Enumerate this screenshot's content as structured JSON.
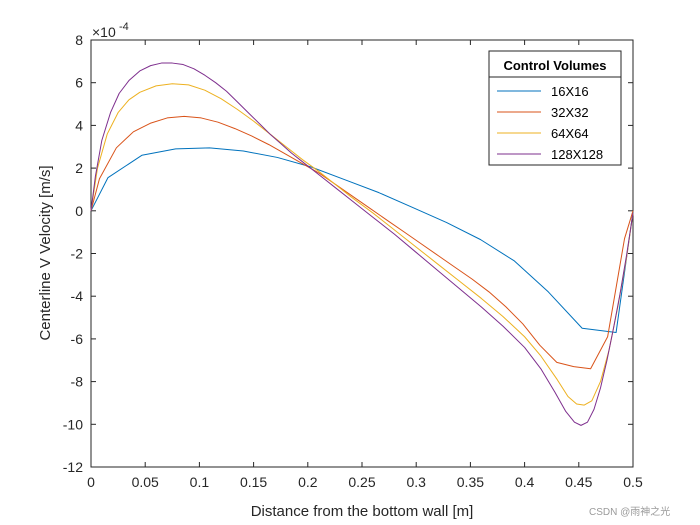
{
  "chart_data": {
    "type": "line",
    "title": "",
    "xlabel": "Distance from the bottom wall [m]",
    "ylabel": "Centerline V Velocity [m/s]",
    "xlim": [
      0,
      0.5
    ],
    "ylim": [
      -12,
      8
    ],
    "y_exponent_label": "×10",
    "y_exponent_power": "-4",
    "xticks": [
      0,
      0.05,
      0.1,
      0.15,
      0.2,
      0.25,
      0.3,
      0.35,
      0.4,
      0.45,
      0.5
    ],
    "xtick_labels": [
      "0",
      "0.05",
      "0.1",
      "0.15",
      "0.2",
      "0.25",
      "0.3",
      "0.35",
      "0.4",
      "0.45",
      "0.5"
    ],
    "yticks": [
      -12,
      -10,
      -8,
      -6,
      -4,
      -2,
      0,
      2,
      4,
      6,
      8
    ],
    "ytick_labels": [
      "-12",
      "-10",
      "-8",
      "-6",
      "-4",
      "-2",
      "0",
      "2",
      "4",
      "6",
      "8"
    ],
    "legend_title": "Control Volumes",
    "legend_position": "top-right",
    "series": [
      {
        "name": "16X16",
        "color": "#0072BD",
        "x": [
          0,
          0.0156,
          0.0469,
          0.0781,
          0.1094,
          0.1406,
          0.1719,
          0.2031,
          0.2344,
          0.2656,
          0.2969,
          0.3281,
          0.3594,
          0.3906,
          0.4219,
          0.4531,
          0.4844,
          0.5
        ],
        "y": [
          0,
          1.55,
          2.6,
          2.9,
          2.95,
          2.8,
          2.5,
          2.05,
          1.45,
          0.85,
          0.15,
          -0.55,
          -1.35,
          -2.35,
          -3.8,
          -5.5,
          -5.7,
          -0.05
        ]
      },
      {
        "name": "32X32",
        "color": "#D95319",
        "x": [
          0,
          0.0078,
          0.0234,
          0.0391,
          0.0547,
          0.0703,
          0.0859,
          0.1016,
          0.1172,
          0.1328,
          0.1484,
          0.1641,
          0.1797,
          0.1953,
          0.2109,
          0.2266,
          0.2422,
          0.2578,
          0.2734,
          0.2891,
          0.3047,
          0.3203,
          0.3359,
          0.3516,
          0.3672,
          0.3828,
          0.3984,
          0.4141,
          0.4297,
          0.4453,
          0.4609,
          0.4766,
          0.4922,
          0.5
        ],
        "y": [
          0,
          1.5,
          2.95,
          3.7,
          4.1,
          4.35,
          4.42,
          4.35,
          4.15,
          3.85,
          3.5,
          3.1,
          2.65,
          2.2,
          1.75,
          1.2,
          0.65,
          0.1,
          -0.45,
          -1.0,
          -1.55,
          -2.1,
          -2.65,
          -3.2,
          -3.8,
          -4.5,
          -5.3,
          -6.3,
          -7.1,
          -7.3,
          -7.4,
          -5.9,
          -1.3,
          0
        ]
      },
      {
        "name": "64X64",
        "color": "#EDB120",
        "x": [
          0,
          0.006,
          0.015,
          0.025,
          0.035,
          0.045,
          0.06,
          0.075,
          0.09,
          0.105,
          0.12,
          0.135,
          0.15,
          0.165,
          0.18,
          0.195,
          0.21,
          0.225,
          0.24,
          0.26,
          0.28,
          0.3,
          0.32,
          0.34,
          0.36,
          0.38,
          0.4,
          0.415,
          0.43,
          0.44,
          0.448,
          0.455,
          0.462,
          0.47,
          0.478,
          0.486,
          0.494,
          0.5
        ],
        "y": [
          0,
          2.0,
          3.6,
          4.6,
          5.2,
          5.55,
          5.85,
          5.95,
          5.9,
          5.65,
          5.25,
          4.75,
          4.2,
          3.6,
          3.0,
          2.4,
          1.85,
          1.25,
          0.65,
          -0.1,
          -0.9,
          -1.7,
          -2.5,
          -3.3,
          -4.1,
          -4.95,
          -5.9,
          -6.8,
          -7.9,
          -8.7,
          -9.05,
          -9.1,
          -8.9,
          -8.0,
          -6.5,
          -4.5,
          -2.2,
          -0.1
        ]
      },
      {
        "name": "128X128",
        "color": "#7E2F8E",
        "x": [
          0,
          0.004,
          0.01,
          0.018,
          0.026,
          0.035,
          0.045,
          0.055,
          0.065,
          0.075,
          0.085,
          0.095,
          0.105,
          0.115,
          0.125,
          0.135,
          0.145,
          0.155,
          0.165,
          0.175,
          0.185,
          0.195,
          0.205,
          0.215,
          0.225,
          0.24,
          0.26,
          0.28,
          0.3,
          0.32,
          0.34,
          0.36,
          0.38,
          0.4,
          0.415,
          0.428,
          0.438,
          0.446,
          0.452,
          0.458,
          0.464,
          0.47,
          0.476,
          0.482,
          0.488,
          0.494,
          0.5
        ],
        "y": [
          0,
          1.6,
          3.3,
          4.6,
          5.5,
          6.1,
          6.55,
          6.8,
          6.92,
          6.92,
          6.85,
          6.65,
          6.35,
          6.0,
          5.6,
          5.1,
          4.6,
          4.1,
          3.6,
          3.15,
          2.7,
          2.3,
          1.9,
          1.5,
          1.1,
          0.5,
          -0.3,
          -1.1,
          -1.95,
          -2.8,
          -3.65,
          -4.5,
          -5.4,
          -6.4,
          -7.4,
          -8.5,
          -9.4,
          -9.9,
          -10.05,
          -9.9,
          -9.3,
          -8.3,
          -7.0,
          -5.5,
          -3.9,
          -2.1,
          -0.1
        ]
      }
    ]
  },
  "watermark": "CSDN @雨神之光"
}
